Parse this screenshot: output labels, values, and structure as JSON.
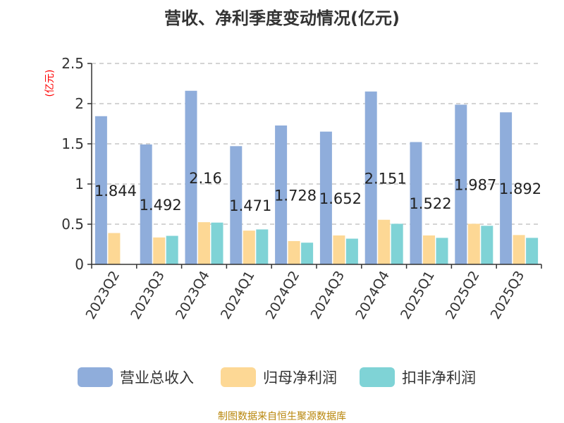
{
  "chart_data": {
    "type": "bar",
    "title": "营收、净利季度变动情况(亿元)",
    "ylabel": "(亿元)",
    "xlabel": "",
    "ylim": [
      0,
      2.5
    ],
    "yticks": [
      0,
      0.5,
      1,
      1.5,
      2,
      2.5
    ],
    "ytick_labels": [
      "0",
      "0.5",
      "1",
      "1.5",
      "2",
      "2.5"
    ],
    "grid": true,
    "legend_position": "bottom",
    "categories": [
      "2023Q2",
      "2023Q3",
      "2023Q4",
      "2024Q1",
      "2024Q2",
      "2024Q3",
      "2024Q4",
      "2025Q1",
      "2025Q2",
      "2025Q3"
    ],
    "series": [
      {
        "name": "营业总收入",
        "color": "#8faddb",
        "values": [
          1.844,
          1.492,
          2.16,
          1.471,
          1.728,
          1.652,
          2.151,
          1.522,
          1.987,
          1.892
        ]
      },
      {
        "name": "归母净利润",
        "color": "#fdd895",
        "values": [
          0.39,
          0.335,
          0.525,
          0.42,
          0.29,
          0.36,
          0.555,
          0.36,
          0.505,
          0.365
        ]
      },
      {
        "name": "扣非净利润",
        "color": "#7fd3d6",
        "values": [
          null,
          0.355,
          0.52,
          0.435,
          0.27,
          0.32,
          0.505,
          0.33,
          0.48,
          0.33
        ]
      }
    ],
    "data_labels": [
      "1.844",
      "1.492",
      "2.16",
      "1.471",
      "1.728",
      "1.652",
      "2.151",
      "1.522",
      "1.987",
      "1.892"
    ]
  },
  "source": "制图数据来自恒生聚源数据库"
}
